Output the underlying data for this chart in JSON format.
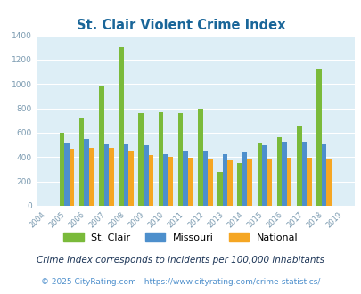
{
  "title": "St. Clair Violent Crime Index",
  "years": [
    2004,
    2005,
    2006,
    2007,
    2008,
    2009,
    2010,
    2011,
    2012,
    2013,
    2014,
    2015,
    2016,
    2017,
    2018,
    2019
  ],
  "st_clair": [
    0,
    600,
    725,
    990,
    1305,
    760,
    770,
    760,
    800,
    275,
    350,
    520,
    560,
    655,
    1130,
    0
  ],
  "missouri": [
    0,
    520,
    550,
    505,
    505,
    500,
    425,
    445,
    450,
    425,
    440,
    500,
    530,
    530,
    505,
    0
  ],
  "national": [
    0,
    465,
    475,
    475,
    455,
    415,
    405,
    395,
    390,
    375,
    385,
    390,
    395,
    395,
    380,
    0
  ],
  "bar_colors": {
    "st_clair": "#7aba3a",
    "missouri": "#4d8fcc",
    "national": "#f5a623"
  },
  "plot_bg": "#ddeef6",
  "ylim": [
    0,
    1400
  ],
  "yticks": [
    0,
    200,
    400,
    600,
    800,
    1000,
    1200,
    1400
  ],
  "footnote1": "Crime Index corresponds to incidents per 100,000 inhabitants",
  "footnote2": "© 2025 CityRating.com - https://www.cityrating.com/crime-statistics/",
  "title_color": "#1a6699",
  "footnote1_color": "#1a3355",
  "footnote2_color": "#4d8fcc",
  "tick_color": "#7a9ab0",
  "bar_width": 0.25
}
